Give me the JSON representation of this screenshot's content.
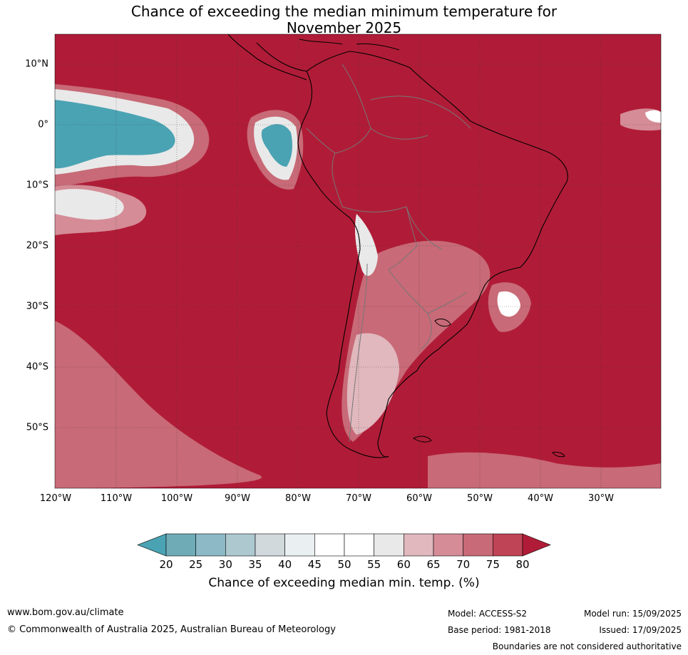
{
  "title": {
    "line1": "Chance of exceeding the median minimum temperature for",
    "line2": "November 2025"
  },
  "map": {
    "latitude_labels": [
      "10°N",
      "0°",
      "10°S",
      "20°S",
      "30°S",
      "40°S",
      "50°S"
    ],
    "longitude_labels": [
      "120°W",
      "110°W",
      "100°W",
      "90°W",
      "80°W",
      "70°W",
      "60°W",
      "50°W",
      "40°W",
      "30°W"
    ],
    "dominant_color": "#b01c37",
    "cool_color": "#4aa3b3"
  },
  "colorbar": {
    "ticks": [
      "20",
      "25",
      "30",
      "35",
      "40",
      "45",
      "50",
      "55",
      "60",
      "65",
      "70",
      "75",
      "80"
    ],
    "colors": [
      "#4aa3b3",
      "#6eabb7",
      "#8cb9c5",
      "#adc8cf",
      "#d2d9dc",
      "#eaf0f2",
      "#ffffff",
      "#ffffff",
      "#e9e9e9",
      "#e0b8be",
      "#d58c97",
      "#c86a77",
      "#bf4455",
      "#b01c37"
    ],
    "label": "Chance of exceeding median min. temp. (%)"
  },
  "footer": {
    "website": "www.bom.gov.au/climate",
    "copyright": "© Commonwealth of Australia 2025, Australian Bureau of Meteorology",
    "model": "Model: ACCESS-S2",
    "base_period": "Base period: 1981-2018",
    "model_run": "Model run: 15/09/2025",
    "issued": "Issued: 17/09/2025",
    "disclaimer": "Boundaries are not considered authoritative"
  }
}
